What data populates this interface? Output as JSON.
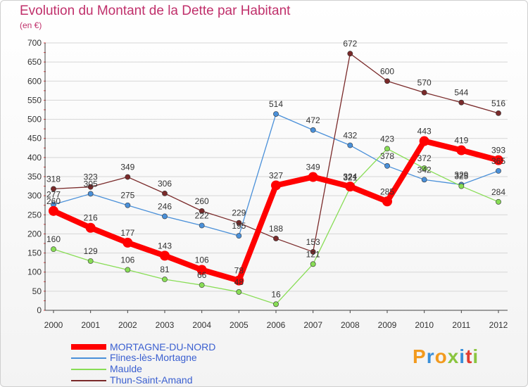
{
  "title": "Evolution du Montant de la Dette par Habitant",
  "subtitle": "(en €)",
  "logo": "Proxiti",
  "chart_data": {
    "type": "line",
    "x": [
      2000,
      2001,
      2002,
      2003,
      2004,
      2005,
      2006,
      2007,
      2008,
      2009,
      2010,
      2011,
      2012
    ],
    "ylim": [
      0,
      700
    ],
    "yticks": [
      0,
      50,
      100,
      150,
      200,
      250,
      300,
      350,
      400,
      450,
      500,
      550,
      600,
      650,
      700
    ],
    "grid": "horizontal",
    "legend_position": "bottom-left",
    "series": [
      {
        "name": "MORTAGNE-DU-NORD",
        "color": "#ff0000",
        "values": [
          260,
          216,
          177,
          143,
          106,
          78,
          327,
          349,
          324,
          285,
          443,
          419,
          393
        ],
        "labels": [
          "260",
          "216",
          "177",
          "143",
          "106",
          "78",
          "327",
          "349",
          "324",
          "285",
          "443",
          "419",
          "393"
        ]
      },
      {
        "name": "Flines-lès-Mortagne",
        "color": "#4a90d9",
        "values": [
          277,
          305,
          275,
          246,
          222,
          195,
          514,
          472,
          432,
          378,
          342,
          329,
          365
        ],
        "labels": [
          "277",
          "305",
          "275",
          "246",
          "222",
          "195",
          "514",
          "472",
          "432",
          "378",
          "342",
          "329",
          "365"
        ]
      },
      {
        "name": "Maulde",
        "color": "#88dd55",
        "values": [
          160,
          129,
          106,
          81,
          66,
          48,
          16,
          121,
          321,
          423,
          372,
          325,
          284
        ],
        "labels": [
          "160",
          "129",
          "106",
          "81",
          "66",
          "48",
          "16",
          "121",
          "321",
          "423",
          "372",
          "325",
          "284"
        ]
      },
      {
        "name": "Thun-Saint-Amand",
        "color": "#7a2a2a",
        "values": [
          318,
          323,
          349,
          306,
          260,
          229,
          188,
          153,
          672,
          600,
          570,
          544,
          516
        ],
        "labels": [
          "318",
          "323",
          "349",
          "306",
          "260",
          "229",
          "188",
          "153",
          "672",
          "600",
          "570",
          "544",
          "516"
        ]
      }
    ]
  }
}
